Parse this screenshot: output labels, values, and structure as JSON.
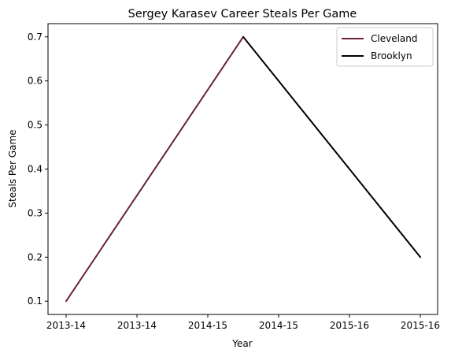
{
  "chart_data": {
    "type": "line",
    "title": "Sergey Karasev Career Steals Per Game",
    "xlabel": "Year",
    "ylabel": "Steals Per Game",
    "x_tick_labels": [
      "2013-14",
      "2013-14",
      "2014-15",
      "2014-15",
      "2015-16",
      "2015-16"
    ],
    "y_ticks": [
      0.1,
      0.2,
      0.3,
      0.4,
      0.5,
      0.6,
      0.7
    ],
    "ylim": [
      0.07,
      0.73
    ],
    "grid": false,
    "legend_position": "top-right",
    "series": [
      {
        "name": "Cleveland",
        "color": "#6b2136",
        "points": [
          {
            "x_index": 0,
            "y": 0.1
          },
          {
            "x_index": 2.5,
            "y": 0.7
          }
        ]
      },
      {
        "name": "Brooklyn",
        "color": "#000000",
        "points": [
          {
            "x_index": 2.5,
            "y": 0.7
          },
          {
            "x_index": 5,
            "y": 0.2
          }
        ]
      }
    ]
  }
}
